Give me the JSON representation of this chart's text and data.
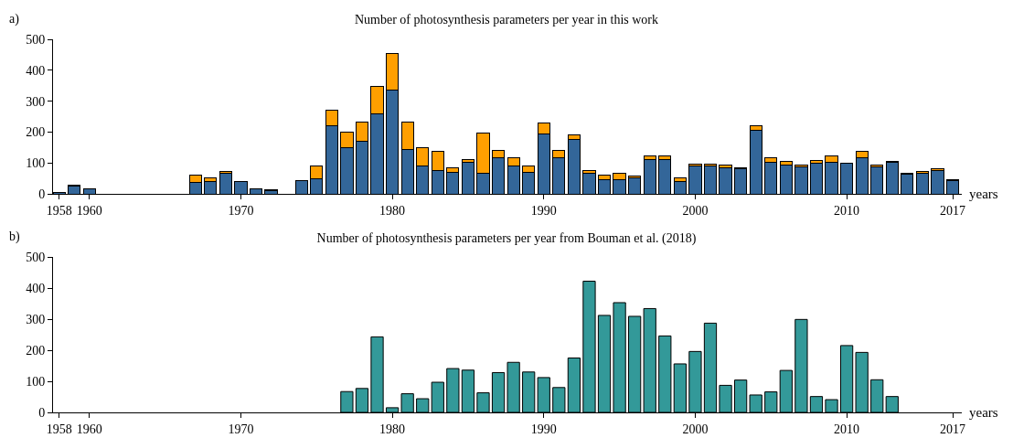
{
  "chart_data": [
    {
      "type": "bar",
      "stacked": true,
      "title": "Number of photosynthesis parameters per year in this work",
      "xlabel": "years",
      "annotations": [
        "a)"
      ],
      "x": [
        1958,
        1959,
        1960,
        1967,
        1968,
        1969,
        1970,
        1971,
        1972,
        1974,
        1975,
        1976,
        1977,
        1978,
        1979,
        1980,
        1981,
        1982,
        1983,
        1984,
        1985,
        1986,
        1987,
        1988,
        1989,
        1990,
        1991,
        1992,
        1993,
        1994,
        1995,
        1996,
        1997,
        1998,
        1999,
        2000,
        2001,
        2002,
        2003,
        2004,
        2005,
        2006,
        2007,
        2008,
        2009,
        2010,
        2011,
        2012,
        2013,
        2014,
        2015,
        2016,
        2017
      ],
      "series": [
        {
          "color": "#336699",
          "values": [
            3,
            25,
            15,
            37,
            39,
            66,
            41,
            15,
            10,
            42,
            50,
            219,
            150,
            169,
            259,
            335,
            143,
            90,
            74,
            71,
            103,
            66,
            118,
            91,
            69,
            195,
            116,
            177,
            66,
            46,
            45,
            52,
            112,
            112,
            41,
            91,
            91,
            85,
            80,
            206,
            101,
            92,
            88,
            98,
            103,
            100,
            116,
            86,
            101,
            64,
            67,
            76,
            42
          ]
        },
        {
          "color": "#ff9f00",
          "values": [
            null,
            2,
            null,
            24,
            14,
            7,
            null,
            null,
            3,
            2,
            41,
            51,
            50,
            62,
            90,
            120,
            90,
            59,
            63,
            14,
            8,
            132,
            22,
            27,
            20,
            34,
            24,
            14,
            8,
            15,
            21,
            6,
            10,
            10,
            12,
            5,
            6,
            9,
            4,
            14,
            15,
            12,
            5,
            9,
            19,
            null,
            21,
            7,
            3,
            3,
            5,
            5,
            3
          ]
        }
      ],
      "xlim": [
        1957.6,
        2017.6
      ],
      "xticks": [
        1958,
        1960,
        1970,
        1980,
        1990,
        2000,
        2010,
        2017
      ],
      "ylim": [
        0,
        500
      ],
      "yticks": [
        0,
        100,
        200,
        300,
        400,
        500
      ]
    },
    {
      "type": "bar",
      "title": "Number of photosynthesis parameters per year from Bouman et al. (2018)",
      "xlabel": "years",
      "annotations": [
        "b)"
      ],
      "x": [
        1977,
        1978,
        1979,
        1980,
        1981,
        1982,
        1983,
        1984,
        1985,
        1986,
        1987,
        1988,
        1989,
        1990,
        1991,
        1992,
        1993,
        1994,
        1995,
        1996,
        1997,
        1998,
        1999,
        2000,
        2001,
        2002,
        2003,
        2004,
        2005,
        2006,
        2007,
        2008,
        2009,
        2010,
        2011,
        2012,
        2013
      ],
      "series": [
        {
          "color": "#339999",
          "values": [
            67,
            77,
            243,
            15,
            60,
            44,
            97,
            141,
            136,
            63,
            128,
            161,
            130,
            112,
            80,
            175,
            422,
            312,
            353,
            309,
            334,
            246,
            156,
            196,
            287,
            87,
            104,
            56,
            66,
            135,
            299,
            51,
            41,
            215,
            193,
            105,
            51
          ]
        }
      ],
      "xlim": [
        1957.6,
        2017.6
      ],
      "xticks": [
        1958,
        1960,
        1970,
        1980,
        1990,
        2000,
        2010,
        2017
      ],
      "ylim": [
        0,
        500
      ],
      "yticks": [
        0,
        100,
        200,
        300,
        400,
        500
      ]
    }
  ]
}
